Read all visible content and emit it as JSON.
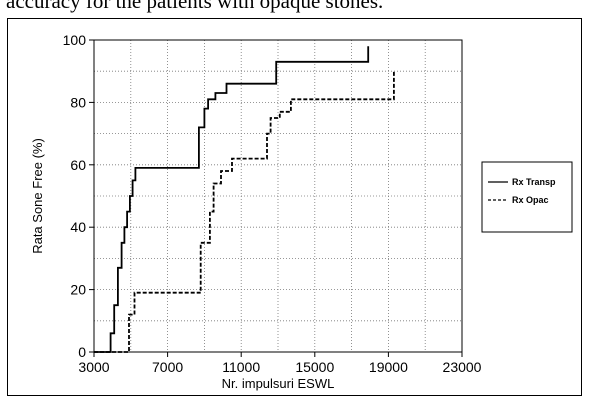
{
  "page": {
    "top_text": "accuracy for the patients with opaque stones."
  },
  "chart_data": {
    "type": "line",
    "title": "",
    "xlabel": "Nr. impulsuri ESWL",
    "ylabel": "Rata Sone Free (%)",
    "xlim": [
      3000,
      23000
    ],
    "ylim": [
      0,
      100
    ],
    "xticks": [
      3000,
      7000,
      11000,
      15000,
      19000,
      23000
    ],
    "yticks": [
      0,
      20,
      40,
      60,
      80,
      100
    ],
    "grid": true,
    "legend_position": "right",
    "series": [
      {
        "name": "Rx Transp",
        "style": "solid",
        "color": "#000000",
        "x": [
          3000,
          3900,
          3900,
          4100,
          4100,
          4300,
          4300,
          4500,
          4500,
          4650,
          4650,
          4800,
          4800,
          4950,
          4950,
          5100,
          5100,
          5250,
          5250,
          8700,
          8700,
          9000,
          9000,
          9200,
          9200,
          9600,
          9600,
          10200,
          10200,
          12900,
          12900,
          17900,
          17900
        ],
        "y": [
          0,
          0,
          6,
          6,
          15,
          15,
          27,
          27,
          35,
          35,
          40,
          40,
          45,
          45,
          50,
          50,
          55,
          55,
          59,
          59,
          72,
          72,
          78,
          78,
          81,
          81,
          83,
          83,
          86,
          86,
          93,
          93,
          98
        ]
      },
      {
        "name": "Rx Opac",
        "style": "dashed",
        "color": "#000000",
        "x": [
          3000,
          4900,
          4900,
          5200,
          5200,
          8800,
          8800,
          9300,
          9300,
          9500,
          9500,
          9900,
          9900,
          10500,
          10500,
          12400,
          12400,
          12600,
          12600,
          13100,
          13100,
          13700,
          13700,
          19300,
          19300
        ],
        "y": [
          0,
          0,
          12,
          12,
          19,
          19,
          35,
          35,
          45,
          45,
          54,
          54,
          58,
          58,
          62,
          62,
          70,
          70,
          75,
          75,
          77,
          77,
          81,
          81,
          90
        ]
      }
    ]
  }
}
